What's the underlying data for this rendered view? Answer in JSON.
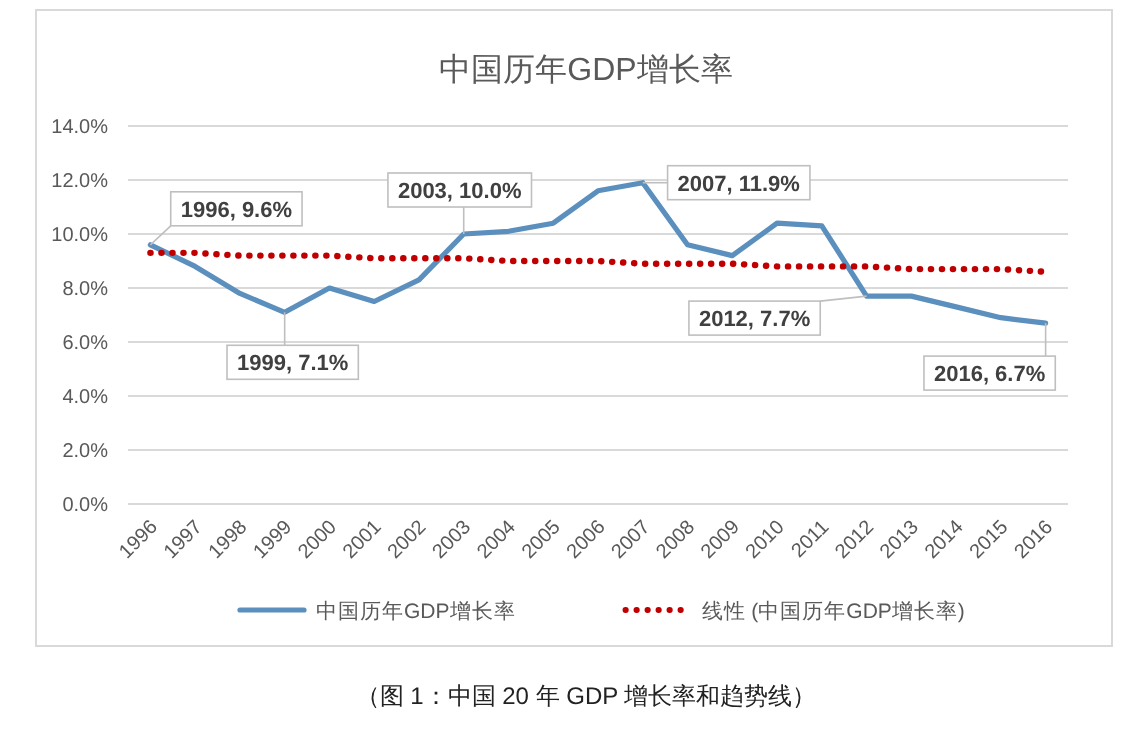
{
  "chart_data": {
    "type": "line",
    "title": "中国历年GDP增长率",
    "categories": [
      "1996",
      "1997",
      "1998",
      "1999",
      "2000",
      "2001",
      "2002",
      "2003",
      "2004",
      "2005",
      "2006",
      "2007",
      "2008",
      "2009",
      "2010",
      "2011",
      "2012",
      "2013",
      "2014",
      "2015",
      "2016"
    ],
    "series": [
      {
        "name": "中国历年GDP增长率",
        "color": "#5b8fbd",
        "line_style": "solid",
        "values": [
          9.6,
          8.8,
          7.8,
          7.1,
          8.0,
          7.5,
          8.3,
          10.0,
          10.1,
          10.4,
          11.6,
          11.9,
          9.6,
          9.2,
          10.4,
          10.3,
          7.7,
          7.7,
          7.3,
          6.9,
          6.7
        ]
      },
      {
        "name": "线性 (中国历年GDP增长率)",
        "color": "#c00000",
        "line_style": "dotted",
        "values": [
          9.3,
          9.3,
          9.2,
          9.2,
          9.2,
          9.1,
          9.1,
          9.1,
          9.0,
          9.0,
          9.0,
          8.9,
          8.9,
          8.9,
          8.8,
          8.8,
          8.8,
          8.7,
          8.7,
          8.7,
          8.6
        ]
      }
    ],
    "ylim": [
      0,
      14
    ],
    "yticks": [
      {
        "value": 0,
        "label": "0.0%"
      },
      {
        "value": 2,
        "label": "2.0%"
      },
      {
        "value": 4,
        "label": "4.0%"
      },
      {
        "value": 6,
        "label": "6.0%"
      },
      {
        "value": 8,
        "label": "8.0%"
      },
      {
        "value": 10,
        "label": "10.0%"
      },
      {
        "value": 12,
        "label": "12.0%"
      },
      {
        "value": 14,
        "label": "14.0%"
      }
    ],
    "grid": "y",
    "legend": "bottom",
    "marker": "none",
    "annotations": [
      {
        "text": "1996, 9.6%",
        "x": "1996",
        "y": 9.6
      },
      {
        "text": "1999, 7.1%",
        "x": "1999",
        "y": 7.1
      },
      {
        "text": "2003, 10.0%",
        "x": "2003",
        "y": 10.0
      },
      {
        "text": "2007, 11.9%",
        "x": "2007",
        "y": 11.9
      },
      {
        "text": "2012, 7.7%",
        "x": "2012",
        "y": 7.7
      },
      {
        "text": "2016, 6.7%",
        "x": "2016",
        "y": 6.7
      },
      "（图 1：中国 20 年 GDP 增长率和趋势线）"
    ]
  }
}
